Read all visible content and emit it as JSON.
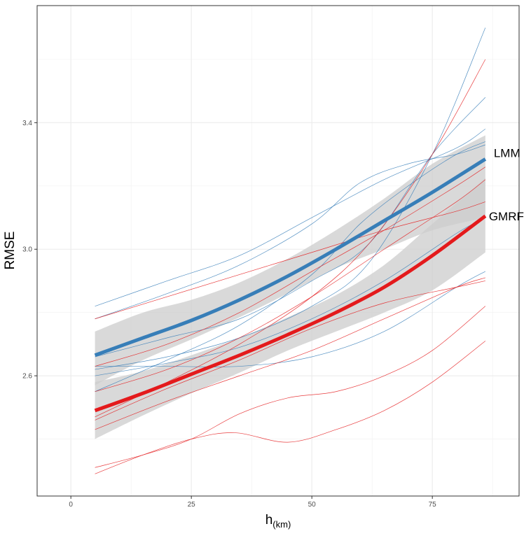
{
  "chart_data": {
    "type": "line",
    "xlabel": "h",
    "xlabel_sub": "(km)",
    "ylabel": "RMSE",
    "xlim": [
      -7,
      93
    ],
    "ylim": [
      2.22,
      3.77
    ],
    "x_ticks": [
      0,
      25,
      50,
      75
    ],
    "y_ticks": [
      2.6,
      3.0,
      3.4
    ],
    "x_tick_labels": [
      "0",
      "25",
      "50",
      "75"
    ],
    "y_tick_labels": [
      "2.6",
      "3.0",
      "3.4"
    ],
    "grid": true,
    "legend": "none",
    "colors": {
      "LMM": "#377eb8",
      "GMRF": "#e41a1c",
      "band": "#cccccc"
    },
    "series": [
      {
        "name": "LMM",
        "x": [
          5,
          15,
          25,
          35,
          45,
          55,
          65,
          75,
          86
        ],
        "y": [
          2.665,
          2.72,
          2.775,
          2.84,
          2.915,
          3.0,
          3.09,
          3.18,
          3.285
        ],
        "ci_low": [
          2.57,
          2.65,
          2.715,
          2.785,
          2.86,
          2.94,
          3.0,
          3.06,
          3.1
        ],
        "ci_high": [
          2.74,
          2.8,
          2.84,
          2.895,
          2.97,
          3.06,
          3.16,
          3.27,
          3.36
        ]
      },
      {
        "name": "GMRF",
        "x": [
          5,
          15,
          25,
          35,
          45,
          55,
          65,
          75,
          86
        ],
        "y": [
          2.49,
          2.545,
          2.605,
          2.665,
          2.73,
          2.8,
          2.88,
          2.98,
          3.105
        ],
        "ci_low": [
          2.4,
          2.475,
          2.545,
          2.61,
          2.68,
          2.74,
          2.8,
          2.87,
          2.99
        ],
        "ci_high": [
          2.58,
          2.615,
          2.665,
          2.72,
          2.785,
          2.855,
          2.95,
          3.08,
          3.225
        ]
      }
    ],
    "individual_lines": [
      {
        "group": "LMM",
        "x": [
          5,
          20,
          35,
          50,
          65,
          80,
          86
        ],
        "y": [
          2.82,
          2.9,
          2.98,
          3.1,
          3.22,
          3.32,
          3.38
        ]
      },
      {
        "group": "LMM",
        "x": [
          5,
          20,
          35,
          50,
          60,
          70,
          80,
          86
        ],
        "y": [
          2.78,
          2.86,
          2.95,
          3.08,
          3.21,
          3.27,
          3.3,
          3.33
        ]
      },
      {
        "group": "LMM",
        "x": [
          5,
          20,
          35,
          50,
          62,
          75,
          86
        ],
        "y": [
          2.66,
          2.72,
          2.78,
          2.9,
          3.02,
          3.3,
          3.48
        ]
      },
      {
        "group": "LMM",
        "x": [
          5,
          20,
          35,
          50,
          62,
          75,
          86
        ],
        "y": [
          2.62,
          2.66,
          2.72,
          2.82,
          2.96,
          3.3,
          3.7
        ]
      },
      {
        "group": "LMM",
        "x": [
          5,
          20,
          35,
          50,
          65,
          80,
          86
        ],
        "y": [
          2.6,
          2.64,
          2.69,
          2.78,
          2.9,
          3.05,
          3.1
        ]
      },
      {
        "group": "LMM",
        "x": [
          5,
          20,
          35,
          50,
          65,
          80,
          86
        ],
        "y": [
          2.63,
          2.63,
          2.63,
          2.66,
          2.74,
          2.88,
          2.93
        ]
      },
      {
        "group": "LMM",
        "x": [
          5,
          20,
          35,
          50,
          60,
          70,
          80,
          86
        ],
        "y": [
          2.55,
          2.65,
          2.76,
          2.92,
          3.08,
          3.2,
          3.3,
          3.34
        ]
      },
      {
        "group": "GMRF",
        "x": [
          5,
          20,
          35,
          50,
          65,
          80,
          86
        ],
        "y": [
          2.78,
          2.85,
          2.92,
          2.99,
          3.06,
          3.12,
          3.15
        ]
      },
      {
        "group": "GMRF",
        "x": [
          5,
          20,
          35,
          50,
          65,
          80,
          86
        ],
        "y": [
          2.63,
          2.7,
          2.8,
          2.93,
          3.06,
          3.2,
          3.26
        ]
      },
      {
        "group": "GMRF",
        "x": [
          5,
          20,
          35,
          50,
          65,
          80,
          86
        ],
        "y": [
          2.55,
          2.62,
          2.72,
          2.85,
          3.0,
          3.15,
          3.22
        ]
      },
      {
        "group": "GMRF",
        "x": [
          5,
          20,
          35,
          50,
          62,
          75,
          86
        ],
        "y": [
          2.47,
          2.58,
          2.7,
          2.85,
          3.02,
          3.3,
          3.6
        ]
      },
      {
        "group": "GMRF",
        "x": [
          5,
          20,
          35,
          50,
          65,
          80,
          86
        ],
        "y": [
          2.46,
          2.56,
          2.65,
          2.75,
          2.83,
          2.88,
          2.9
        ]
      },
      {
        "group": "GMRF",
        "x": [
          5,
          20,
          35,
          50,
          65,
          80,
          86
        ],
        "y": [
          2.43,
          2.52,
          2.6,
          2.68,
          2.78,
          2.88,
          2.91
        ]
      },
      {
        "group": "GMRF",
        "x": [
          5,
          15,
          25,
          35,
          45,
          55,
          65,
          75,
          86
        ],
        "y": [
          2.31,
          2.35,
          2.4,
          2.48,
          2.53,
          2.55,
          2.6,
          2.68,
          2.82
        ]
      },
      {
        "group": "GMRF",
        "x": [
          5,
          15,
          25,
          34,
          45,
          55,
          65,
          75,
          86
        ],
        "y": [
          2.29,
          2.35,
          2.4,
          2.42,
          2.39,
          2.43,
          2.49,
          2.58,
          2.71
        ]
      }
    ]
  }
}
